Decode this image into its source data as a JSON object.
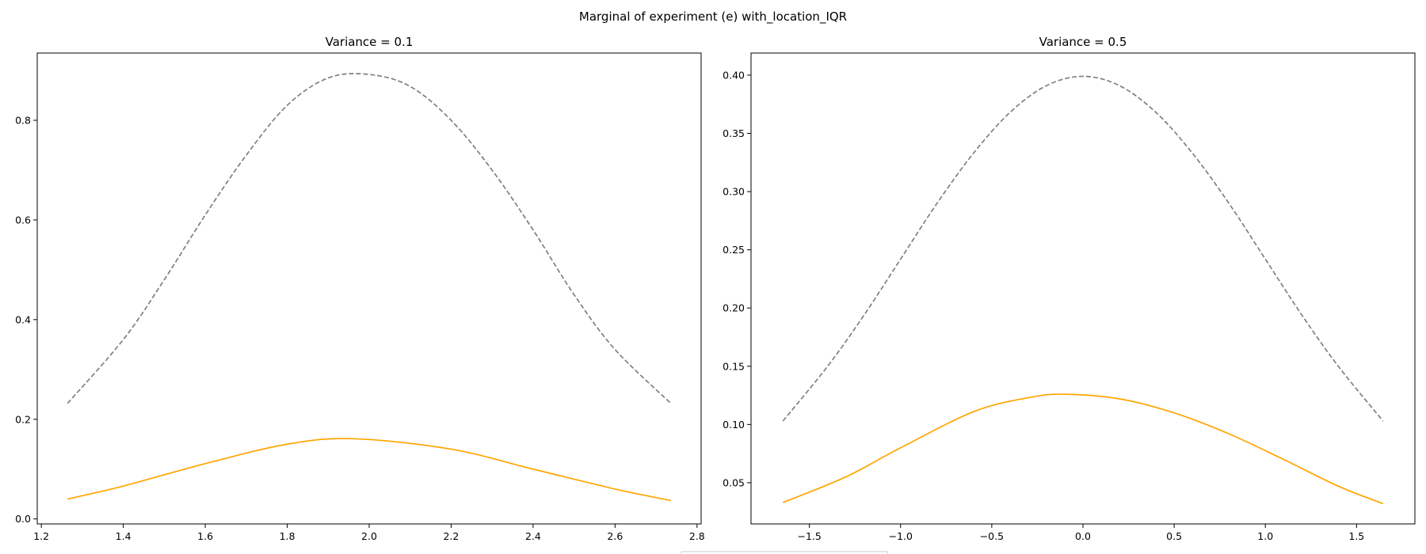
{
  "figure": {
    "suptitle": "Marginal of experiment (e) with_location_IQR"
  },
  "chart_data": [
    {
      "type": "line",
      "title": "Variance = 0.1",
      "xlabel": "",
      "ylabel": "",
      "xlim": [
        1.19,
        2.81
      ],
      "ylim": [
        -0.01,
        0.935
      ],
      "xticks": [
        1.2,
        1.4,
        1.6,
        1.8,
        2.0,
        2.2,
        2.4,
        2.6,
        2.8
      ],
      "xtick_labels": [
        "1.2",
        "1.4",
        "1.6",
        "1.8",
        "2.0",
        "2.2",
        "2.4",
        "2.6",
        "2.8"
      ],
      "yticks": [
        0.0,
        0.2,
        0.4,
        0.6,
        0.8
      ],
      "ytick_labels": [
        "0.0",
        "0.2",
        "0.4",
        "0.6",
        "0.8"
      ],
      "grid": false,
      "series": [
        {
          "name": "dashed-gray",
          "color": "#808080",
          "style": "dashed",
          "x": [
            1.264,
            1.4,
            1.5,
            1.6,
            1.7,
            1.8,
            1.9,
            2.0,
            2.1,
            2.2,
            2.3,
            2.4,
            2.5,
            2.6,
            2.736
          ],
          "y": [
            0.232,
            0.36,
            0.48,
            0.61,
            0.73,
            0.83,
            0.885,
            0.892,
            0.868,
            0.8,
            0.7,
            0.58,
            0.45,
            0.34,
            0.232
          ]
        },
        {
          "name": "solid-orange",
          "color": "#ffa500",
          "style": "solid",
          "x": [
            1.264,
            1.4,
            1.6,
            1.8,
            1.96,
            2.2,
            2.4,
            2.6,
            2.736
          ],
          "y": [
            0.04,
            0.066,
            0.111,
            0.15,
            0.161,
            0.14,
            0.1,
            0.06,
            0.037
          ]
        }
      ]
    },
    {
      "type": "line",
      "title": "Variance = 0.5",
      "xlabel": "",
      "ylabel": "",
      "xlim": [
        -1.82,
        1.82
      ],
      "ylim": [
        0.0146,
        0.419
      ],
      "xticks": [
        -1.5,
        -1.0,
        -0.5,
        0.0,
        0.5,
        1.0,
        1.5
      ],
      "xtick_labels": [
        "−1.5",
        "−1.0",
        "−0.5",
        "0.0",
        "0.5",
        "1.0",
        "1.5"
      ],
      "yticks": [
        0.05,
        0.1,
        0.15,
        0.2,
        0.25,
        0.3,
        0.35,
        0.4
      ],
      "ytick_labels": [
        "0.05",
        "0.10",
        "0.15",
        "0.20",
        "0.25",
        "0.30",
        "0.35",
        "0.40"
      ],
      "grid": false,
      "series": [
        {
          "name": "dashed-gray",
          "color": "#808080",
          "style": "dashed",
          "x": [
            -1.645,
            -1.4,
            -1.2,
            -1.0,
            -0.8,
            -0.6,
            -0.4,
            -0.2,
            0.0,
            0.2,
            0.4,
            0.6,
            0.8,
            1.0,
            1.2,
            1.4,
            1.645
          ],
          "y": [
            0.103,
            0.15,
            0.194,
            0.242,
            0.29,
            0.333,
            0.368,
            0.391,
            0.399,
            0.391,
            0.368,
            0.333,
            0.29,
            0.242,
            0.194,
            0.15,
            0.103
          ]
        },
        {
          "name": "solid-orange",
          "color": "#ffa500",
          "style": "solid",
          "x": [
            -1.645,
            -1.3,
            -1.0,
            -0.6,
            -0.3,
            -0.1,
            0.2,
            0.5,
            0.8,
            1.1,
            1.4,
            1.645
          ],
          "y": [
            0.033,
            0.055,
            0.08,
            0.111,
            0.123,
            0.126,
            0.122,
            0.11,
            0.092,
            0.07,
            0.047,
            0.032
          ]
        }
      ]
    }
  ]
}
